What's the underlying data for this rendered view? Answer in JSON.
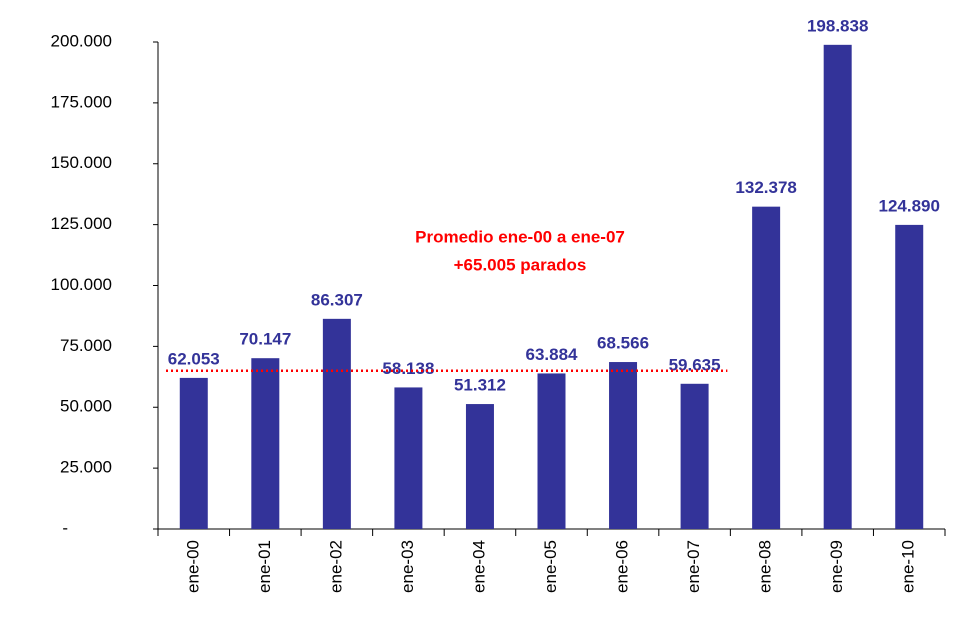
{
  "chart_data": {
    "type": "bar",
    "categories": [
      "ene-00",
      "ene-01",
      "ene-02",
      "ene-03",
      "ene-04",
      "ene-05",
      "ene-06",
      "ene-07",
      "ene-08",
      "ene-09",
      "ene-10"
    ],
    "values": [
      62053,
      70147,
      86307,
      58138,
      51312,
      63884,
      68566,
      59635,
      132378,
      198838,
      124890
    ],
    "value_labels": [
      "62.053",
      "70.147",
      "86.307",
      "58.138",
      "51.312",
      "63.884",
      "68.566",
      "59.635",
      "132.378",
      "198.838",
      "124.890"
    ],
    "color": "#333399",
    "ylim": [
      0,
      200000
    ],
    "yticks": [
      {
        "value": 0,
        "label": "-"
      },
      {
        "value": 25000,
        "label": "25.000"
      },
      {
        "value": 50000,
        "label": "50.000"
      },
      {
        "value": 75000,
        "label": "75.000"
      },
      {
        "value": 100000,
        "label": "100.000"
      },
      {
        "value": 125000,
        "label": "125.000"
      },
      {
        "value": 150000,
        "label": "150.000"
      },
      {
        "value": 175000,
        "label": "175.000"
      },
      {
        "value": 200000,
        "label": "200.000"
      }
    ],
    "reference_line": {
      "value": 65005,
      "color": "#ff0000",
      "annotation": [
        "Promedio ene-00 a ene-07",
        "+65.005 parados"
      ]
    }
  }
}
